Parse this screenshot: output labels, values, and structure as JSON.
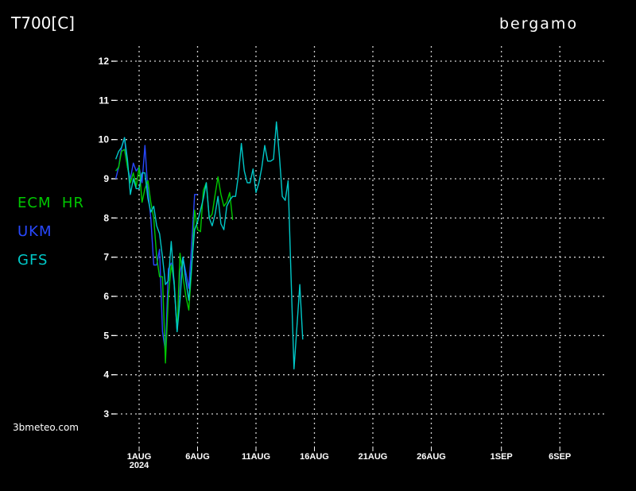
{
  "chart_data": {
    "type": "line",
    "title": "T700[C]",
    "location": "bergamo",
    "credit": "3bmeteo.com",
    "ylim": [
      3,
      12
    ],
    "yticks": [
      3,
      4,
      5,
      6,
      7,
      8,
      9,
      10,
      11,
      12
    ],
    "xlim": [
      "2024-07-29T06",
      "2024-09-09T00"
    ],
    "xticks": [
      {
        "date": "2024-08-01",
        "label": "1AUG",
        "sublabel": "2024"
      },
      {
        "date": "2024-08-06",
        "label": "6AUG"
      },
      {
        "date": "2024-08-11",
        "label": "11AUG"
      },
      {
        "date": "2024-08-16",
        "label": "16AUG"
      },
      {
        "date": "2024-08-21",
        "label": "21AUG"
      },
      {
        "date": "2024-08-26",
        "label": "26AUG"
      },
      {
        "date": "2024-09-01",
        "label": "1SEP"
      },
      {
        "date": "2024-09-06",
        "label": "6SEP"
      }
    ],
    "grid": true,
    "legend_placement": "left",
    "series": [
      {
        "name": "ECM  HR",
        "color": "#00c800",
        "start": "2024-07-30T00",
        "step_hours": 6,
        "values": [
          9.2,
          9.3,
          9.7,
          9.75,
          9.3,
          8.9,
          9.15,
          8.8,
          9.3,
          8.4,
          8.75,
          8.95,
          8.4,
          8.0,
          7.0,
          6.5,
          6.5,
          4.3,
          6.0,
          6.8,
          6.4,
          5.1,
          7.1,
          6.5,
          6.0,
          5.65,
          6.7,
          8.2,
          7.7,
          7.65,
          8.7,
          8.9,
          8.0,
          8.1,
          8.6,
          9.05,
          8.6,
          8.3,
          8.4,
          8.65,
          7.95
        ]
      },
      {
        "name": "UKM",
        "color": "#2848ff",
        "start": "2024-07-30T00",
        "step_hours": 6,
        "values": [
          9.0,
          9.3,
          9.8,
          10.05,
          9.3,
          9.0,
          9.4,
          9.2,
          9.3,
          8.9,
          9.85,
          8.7,
          8.0,
          6.8,
          6.8,
          7.2,
          5.1,
          4.6,
          6.7,
          6.85,
          6.3,
          5.1,
          6.6,
          7.0,
          6.6,
          6.2,
          7.3,
          8.6,
          8.6
        ]
      },
      {
        "name": "GFS",
        "color": "#00c8c8",
        "start": "2024-07-30T00",
        "step_hours": 6,
        "values": [
          9.5,
          9.7,
          9.8,
          10.05,
          9.5,
          8.6,
          9.0,
          8.75,
          8.75,
          9.15,
          9.15,
          8.5,
          8.15,
          8.3,
          7.8,
          7.6,
          7.0,
          6.3,
          6.4,
          7.4,
          6.3,
          5.1,
          5.9,
          7.0,
          6.4,
          5.9,
          6.8,
          7.7,
          7.9,
          8.2,
          8.5,
          8.9,
          8.0,
          7.8,
          8.1,
          8.55,
          7.85,
          7.7,
          8.3,
          8.45,
          8.55,
          8.55,
          9.1,
          9.9,
          9.2,
          8.9,
          8.9,
          9.25,
          8.65,
          8.9,
          9.3,
          9.85,
          9.45,
          9.45,
          9.5,
          10.45,
          9.6,
          8.55,
          8.45,
          8.95,
          6.5,
          4.15,
          5.2,
          6.3,
          4.9
        ]
      }
    ]
  }
}
